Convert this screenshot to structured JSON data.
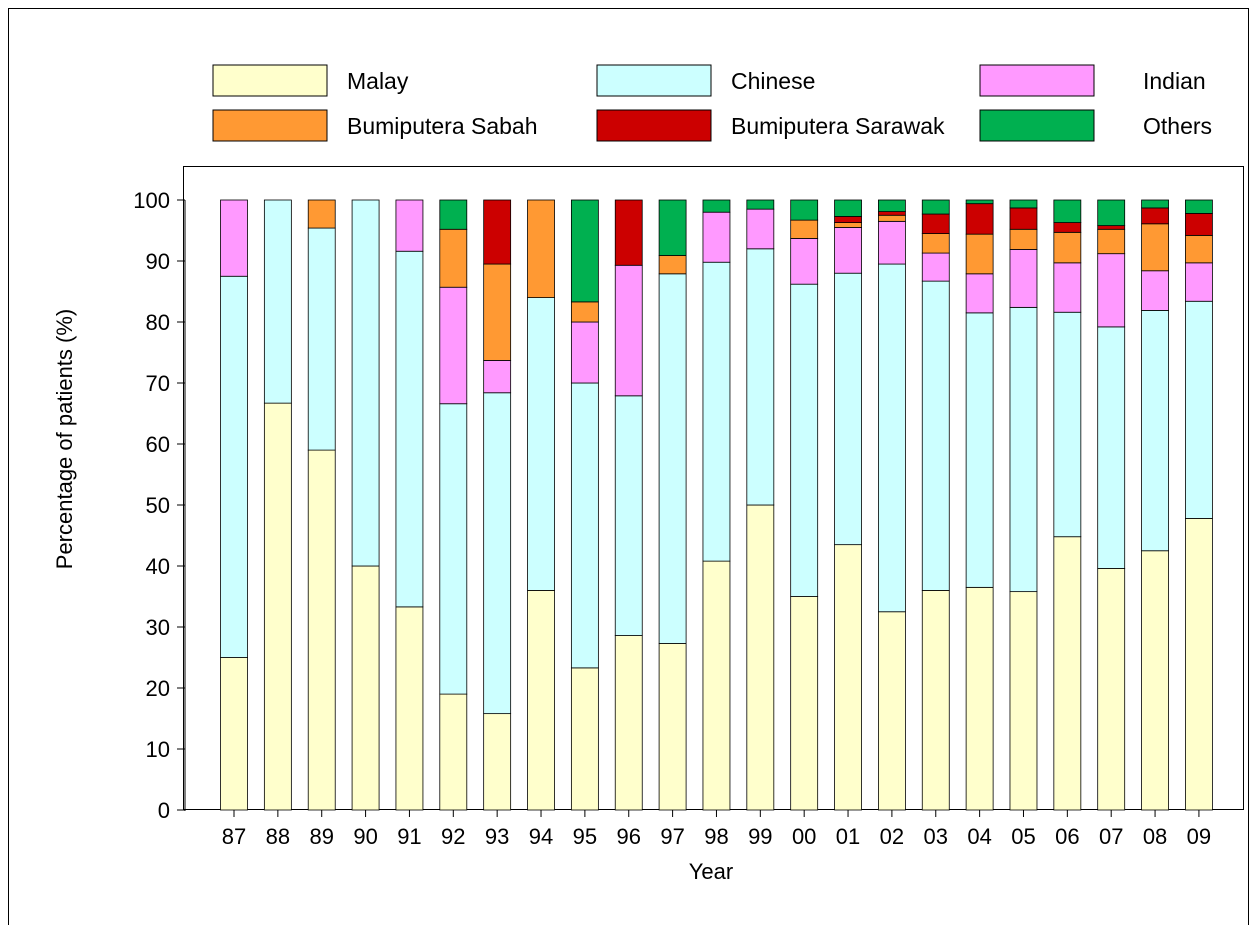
{
  "chart_data": {
    "type": "bar",
    "stacked": true,
    "xlabel": "Year",
    "ylabel": "Percentage of patients (%)",
    "ylim": [
      0,
      100
    ],
    "yticks": [
      0,
      10,
      20,
      30,
      40,
      50,
      60,
      70,
      80,
      90,
      100
    ],
    "grid": false,
    "legend_position": "top",
    "categories": [
      "87",
      "88",
      "89",
      "90",
      "91",
      "92",
      "93",
      "94",
      "95",
      "96",
      "97",
      "98",
      "99",
      "00",
      "01",
      "02",
      "03",
      "04",
      "05",
      "06",
      "07",
      "08",
      "09"
    ],
    "series": [
      {
        "name": "Malay",
        "color": "#ffffcc",
        "values": [
          25,
          66.7,
          59,
          40,
          33.3,
          19,
          15.8,
          36,
          23.3,
          28.6,
          27.3,
          40.8,
          50,
          35,
          43.5,
          32.5,
          36,
          36.5,
          35.8,
          44.8,
          39.6,
          42.5,
          47.8
        ]
      },
      {
        "name": "Chinese",
        "color": "#ccffff",
        "values": [
          62.5,
          33.3,
          36.4,
          60,
          58.3,
          47.6,
          52.6,
          48,
          46.7,
          39.3,
          60.6,
          49,
          42,
          51.2,
          44.5,
          57,
          50.7,
          45,
          46.6,
          36.8,
          39.6,
          39.4,
          35.6
        ]
      },
      {
        "name": "Indian",
        "color": "#ff99ff",
        "values": [
          12.5,
          0,
          0,
          0,
          8.4,
          19.1,
          5.3,
          0,
          10,
          21.4,
          0,
          8.2,
          6.5,
          7.5,
          7.5,
          7,
          4.6,
          6.4,
          9.5,
          8.1,
          12,
          6.5,
          6.3
        ]
      },
      {
        "name": "Bumiputera Sabah",
        "color": "#ff9933",
        "values": [
          0,
          0,
          4.6,
          0,
          0,
          9.5,
          15.8,
          16,
          3.3,
          0,
          3,
          0,
          0,
          3,
          0.8,
          1,
          3.2,
          6.5,
          3.3,
          5,
          4,
          7.7,
          4.5
        ]
      },
      {
        "name": "Bumiputera Sarawak",
        "color": "#cc0000",
        "values": [
          0,
          0,
          0,
          0,
          0,
          0,
          10.5,
          0,
          0,
          10.7,
          0,
          0,
          0,
          0,
          1,
          0.6,
          3.2,
          5,
          3.5,
          1.6,
          0.6,
          2.6,
          3.6
        ]
      },
      {
        "name": "Others",
        "color": "#00b050",
        "values": [
          0,
          0,
          0,
          0,
          0,
          4.8,
          0,
          0,
          16.7,
          0,
          9.1,
          2,
          1.5,
          3.3,
          2.7,
          1.9,
          2.3,
          0.6,
          1.3,
          3.7,
          4.2,
          1.3,
          2.2
        ]
      }
    ]
  }
}
